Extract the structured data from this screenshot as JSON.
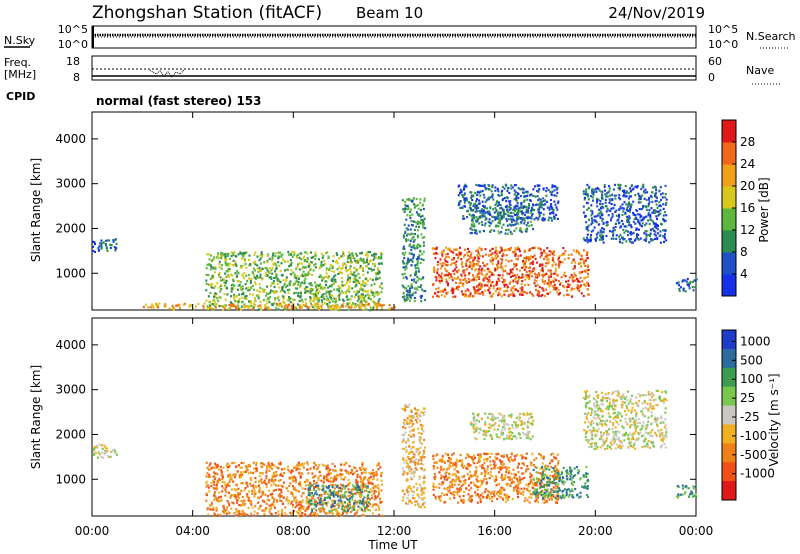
{
  "header": {
    "station": "Zhongshan Station (fitACF)",
    "beam": "Beam 10",
    "date": "24/Nov/2019"
  },
  "noise_panel": {
    "left_label": "N.Sky",
    "left_ticks": [
      "10^5",
      "10^0"
    ],
    "right_ticks": [
      "10^5",
      "10^0"
    ],
    "right_label": "N.Search"
  },
  "freq_panel": {
    "left_label_top": "Freq.",
    "left_label_unit": "[MHz]",
    "left_ticks": [
      "18",
      "8"
    ],
    "right_ticks": [
      "60",
      "0"
    ],
    "right_label": "Nave"
  },
  "cpid": {
    "label": "CPID",
    "mode_text": "normal (fast stereo) 153"
  },
  "chart_data": [
    {
      "type": "heatmap",
      "name": "power",
      "ylabel": "Slant Range [km]",
      "y_ticks": [
        "1000",
        "2000",
        "3000",
        "4000"
      ],
      "ylim": [
        180,
        4600
      ],
      "colorbar_label": "Power [dB]",
      "colorbar_ticks": [
        "4",
        "8",
        "12",
        "16",
        "20",
        "24",
        "28"
      ],
      "colorbar_colors": [
        "#1430e8",
        "#1e50c8",
        "#2a8c50",
        "#5cb83c",
        "#d8c81c",
        "#f0a018",
        "#f06818",
        "#e01818"
      ],
      "regions": [
        {
          "x": [
            0.0,
            1.0
          ],
          "y": [
            1500,
            1800
          ],
          "level": 1
        },
        {
          "x": [
            4.5,
            11.5
          ],
          "y": [
            200,
            1500
          ],
          "level": 3
        },
        {
          "x": [
            12.3,
            13.2
          ],
          "y": [
            400,
            2700
          ],
          "level": 2
        },
        {
          "x": [
            13.5,
            19.7
          ],
          "y": [
            500,
            1600
          ],
          "level": 6
        },
        {
          "x": [
            15.0,
            17.5
          ],
          "y": [
            1900,
            2500
          ],
          "level": 2
        },
        {
          "x": [
            19.5,
            22.8
          ],
          "y": [
            1700,
            3000
          ],
          "level": 1
        },
        {
          "x": [
            14.5,
            18.5
          ],
          "y": [
            2200,
            3000
          ],
          "level": 1
        },
        {
          "x": [
            23.2,
            24.0
          ],
          "y": [
            600,
            900
          ],
          "level": 1
        },
        {
          "x": [
            2.0,
            12.0
          ],
          "y": [
            220,
            350
          ],
          "level": 5
        }
      ]
    },
    {
      "type": "heatmap",
      "name": "velocity",
      "ylabel": "Slant Range [km]",
      "y_ticks": [
        "1000",
        "2000",
        "3000",
        "4000"
      ],
      "ylim": [
        180,
        4600
      ],
      "colorbar_label": "Velocity [m s⁻¹]",
      "colorbar_ticks": [
        "1000",
        "500",
        "100",
        "25",
        "-25",
        "-100",
        "-500",
        "-1000"
      ],
      "colorbar_colors": [
        "#1e3cc8",
        "#2a6ca0",
        "#3c9c50",
        "#78c850",
        "#c8c8c0",
        "#f0b020",
        "#f08018",
        "#f05018",
        "#e01818"
      ],
      "x_ticks": [
        "00:00",
        "04:00",
        "08:00",
        "12:00",
        "16:00",
        "20:00",
        "00:00"
      ],
      "xlim": [
        0,
        24
      ],
      "xlabel": "Time UT",
      "regions": [
        {
          "x": [
            0.0,
            1.0
          ],
          "y": [
            1500,
            1800
          ],
          "level": 4
        },
        {
          "x": [
            4.5,
            11.5
          ],
          "y": [
            200,
            1400
          ],
          "level": 6
        },
        {
          "x": [
            12.3,
            13.2
          ],
          "y": [
            400,
            2700
          ],
          "level": 5
        },
        {
          "x": [
            13.5,
            18.5
          ],
          "y": [
            500,
            1600
          ],
          "level": 6
        },
        {
          "x": [
            17.5,
            19.7
          ],
          "y": [
            600,
            1300
          ],
          "level": 2
        },
        {
          "x": [
            15.0,
            17.5
          ],
          "y": [
            1900,
            2500
          ],
          "level": 4
        },
        {
          "x": [
            19.5,
            22.8
          ],
          "y": [
            1700,
            3000
          ],
          "level": 4
        },
        {
          "x": [
            23.2,
            24.0
          ],
          "y": [
            600,
            900
          ],
          "level": 2
        },
        {
          "x": [
            8.5,
            11.0
          ],
          "y": [
            300,
            900
          ],
          "level": 2
        }
      ]
    }
  ]
}
